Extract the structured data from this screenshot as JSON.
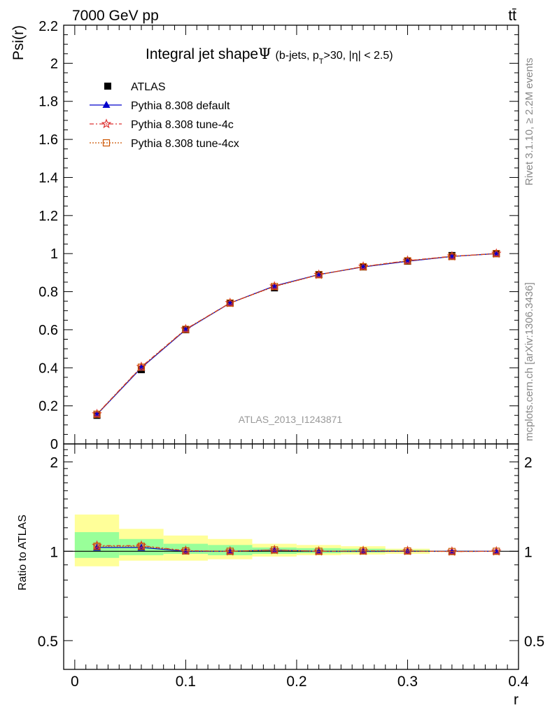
{
  "header": {
    "energy_label": "7000 GeV pp",
    "process_label": "tt̄",
    "rivet_label": "Rivet 3.1.10, ≥ 2.2M events",
    "source_label": "mcplots.cern.ch [arXiv:1306.3436]",
    "analysis_label": "ATLAS_2013_I1243871"
  },
  "title": {
    "main": "Integral jet shape",
    "symbol": "Ψ",
    "cuts_a": "(b-jets, p",
    "cuts_sub": "T",
    "cuts_b": ">30, |η| < 2.5)"
  },
  "colors": {
    "data": "#000000",
    "default": "#0000cc",
    "tune4c": "#dd3333",
    "tune4cx": "#cc5500",
    "band_inner": "#99ff99",
    "band_outer": "#ffff99"
  },
  "chart_data": [
    {
      "type": "line",
      "ylabel": "Psi(r)",
      "xlim": [
        -0.01,
        0.4
      ],
      "ylim": [
        0,
        2.2
      ],
      "yticks": [
        "0",
        "0.2",
        "0.4",
        "0.6",
        "0.8",
        "1",
        "1.2",
        "1.4",
        "1.6",
        "1.8",
        "2",
        "2.2"
      ],
      "x": [
        0.02,
        0.06,
        0.1,
        0.14,
        0.18,
        0.22,
        0.26,
        0.3,
        0.34,
        0.38
      ],
      "legend_placement": "top-left",
      "series": [
        {
          "name": "ATLAS",
          "marker": "square",
          "values": [
            0.15,
            0.39,
            0.6,
            0.74,
            0.82,
            0.89,
            0.93,
            0.96,
            0.99,
            1.0
          ]
        },
        {
          "name": "Pythia 8.308 default",
          "marker": "triangle",
          "values": [
            0.155,
            0.4,
            0.6,
            0.74,
            0.83,
            0.89,
            0.93,
            0.96,
            0.985,
            1.0
          ]
        },
        {
          "name": "Pythia 8.308 tune-4c",
          "marker": "star",
          "values": [
            0.157,
            0.405,
            0.603,
            0.741,
            0.828,
            0.889,
            0.932,
            0.963,
            0.986,
            1.0
          ]
        },
        {
          "name": "Pythia 8.308 tune-4cx",
          "marker": "open-square",
          "values": [
            0.156,
            0.403,
            0.602,
            0.74,
            0.827,
            0.889,
            0.931,
            0.962,
            0.985,
            1.0
          ]
        }
      ]
    },
    {
      "type": "line",
      "ylabel": "Ratio to ATLAS",
      "xlabel": "r",
      "xlim": [
        -0.01,
        0.4
      ],
      "ylim": [
        0.4,
        2.3
      ],
      "log_y": true,
      "yticks": [
        "0.5",
        "1",
        "2"
      ],
      "xticks": [
        "0",
        "0.1",
        "0.2",
        "0.3",
        "0.4"
      ],
      "x": [
        0.02,
        0.06,
        0.1,
        0.14,
        0.18,
        0.22,
        0.26,
        0.3,
        0.34,
        0.38
      ],
      "bins": [
        [
          0.0,
          0.04
        ],
        [
          0.04,
          0.08
        ],
        [
          0.08,
          0.12
        ],
        [
          0.12,
          0.16
        ],
        [
          0.16,
          0.2
        ],
        [
          0.2,
          0.24
        ],
        [
          0.24,
          0.28
        ],
        [
          0.28,
          0.32
        ],
        [
          0.32,
          0.36
        ],
        [
          0.36,
          0.4
        ]
      ],
      "band_inner": [
        [
          0.95,
          1.16
        ],
        [
          0.97,
          1.1
        ],
        [
          0.98,
          1.06
        ],
        [
          0.97,
          1.05
        ],
        [
          0.98,
          1.03
        ],
        [
          0.985,
          1.025
        ],
        [
          0.99,
          1.02
        ],
        [
          0.995,
          1.01
        ],
        [
          0.998,
          1.003
        ],
        [
          1.0,
          1.0
        ]
      ],
      "band_outer": [
        [
          0.89,
          1.33
        ],
        [
          0.93,
          1.19
        ],
        [
          0.93,
          1.13
        ],
        [
          0.94,
          1.1
        ],
        [
          0.96,
          1.06
        ],
        [
          0.97,
          1.05
        ],
        [
          0.975,
          1.04
        ],
        [
          0.98,
          1.02
        ],
        [
          0.995,
          1.005
        ],
        [
          1.0,
          1.0
        ]
      ],
      "series": [
        {
          "name": "Pythia 8.308 default",
          "marker": "triangle",
          "values": [
            1.03,
            1.03,
            1.0,
            1.0,
            1.01,
            1.0,
            1.0,
            1.0,
            1.0,
            1.0
          ]
        },
        {
          "name": "Pythia 8.308 tune-4c",
          "marker": "star",
          "values": [
            1.045,
            1.045,
            1.005,
            1.0,
            1.01,
            1.0,
            1.003,
            1.003,
            0.998,
            1.0
          ]
        },
        {
          "name": "Pythia 8.308 tune-4cx",
          "marker": "open-square",
          "values": [
            1.04,
            1.04,
            1.003,
            1.0,
            1.01,
            1.0,
            1.002,
            1.002,
            0.998,
            1.0
          ]
        }
      ]
    }
  ]
}
